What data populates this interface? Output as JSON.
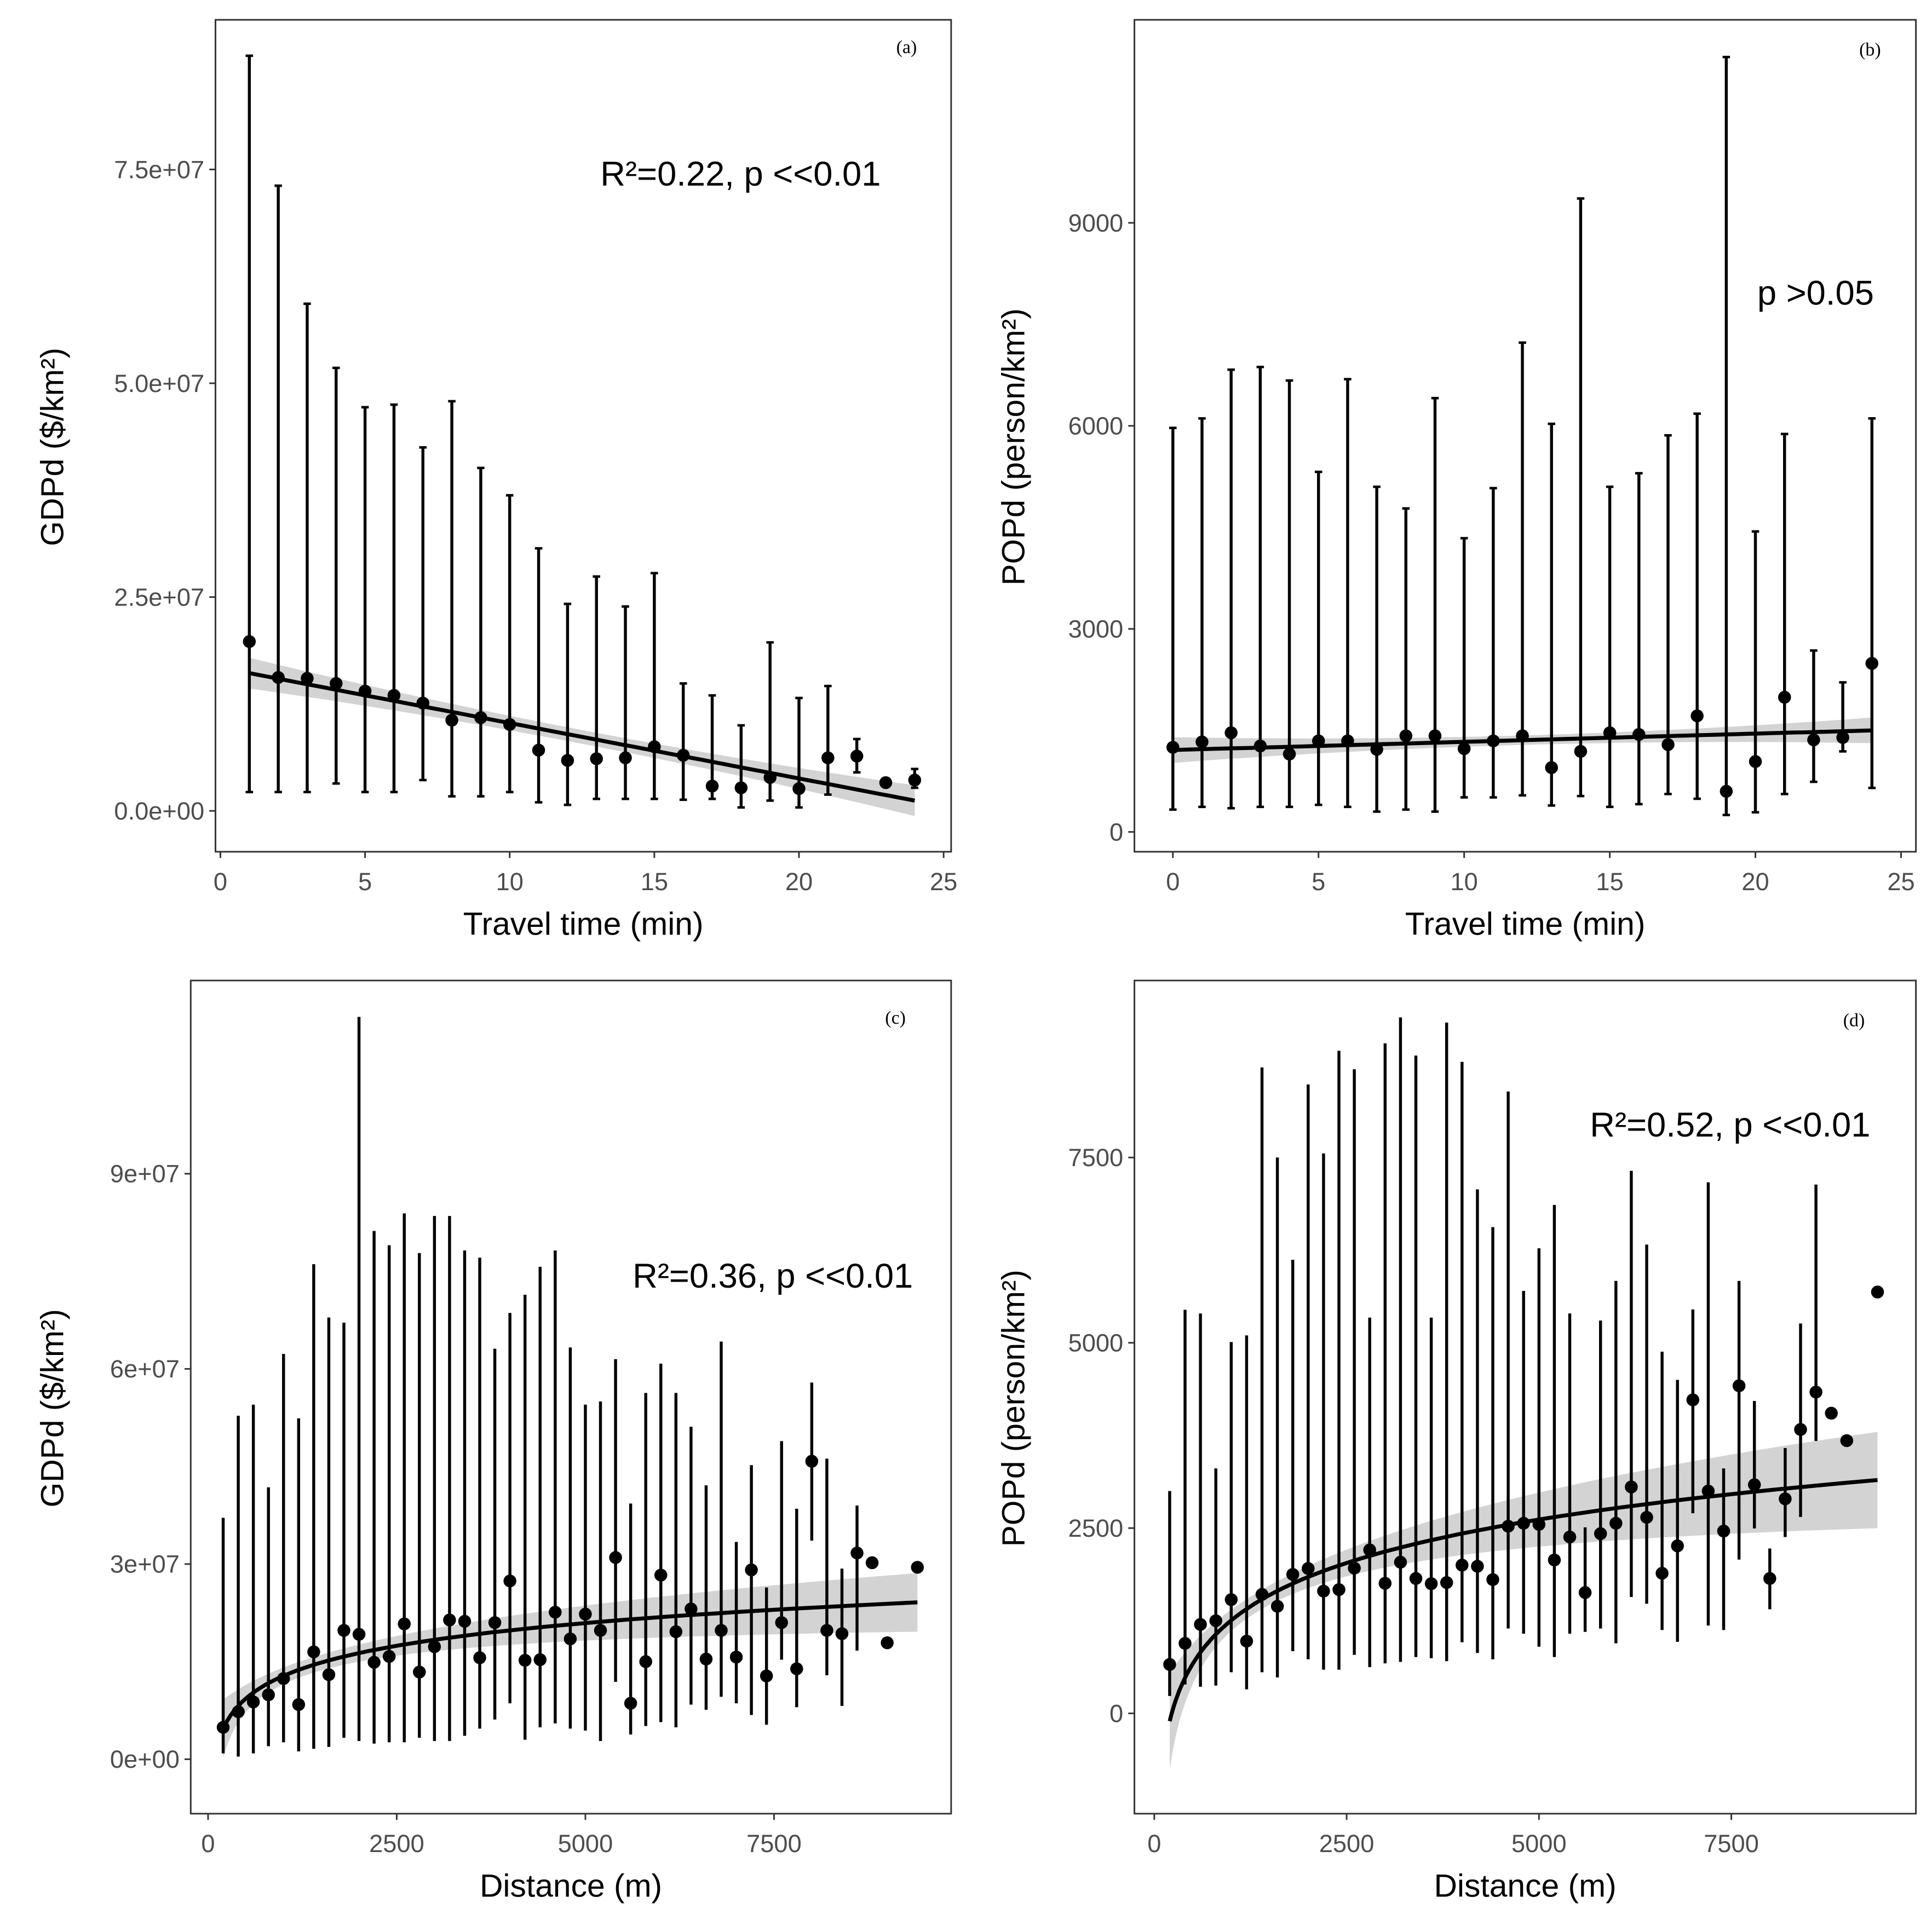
{
  "chart_data": [
    {
      "id": "a",
      "type": "scatter",
      "panel_label": "(a)",
      "annotation": "R²=0.22, p <<0.01",
      "xlabel": "Travel time (min)",
      "ylabel": "GDPd ($/km²)",
      "xlim": [
        -0.17,
        25.26
      ],
      "ylim": [
        -4780000.0,
        92500000.0
      ],
      "xticks": [
        0,
        5,
        10,
        15,
        20,
        25
      ],
      "xtick_labels": [
        "0",
        "5",
        "10",
        "15",
        "20",
        "25"
      ],
      "yticks": [
        0,
        25000000.0,
        50000000.0,
        75000000.0
      ],
      "ytick_labels": [
        "0.0e+00",
        "2.5e+07",
        "5.0e+07",
        "7.5e+07"
      ],
      "x": [
        1,
        2,
        3,
        4,
        5,
        6,
        7,
        8,
        9,
        10,
        11,
        12,
        13,
        14,
        15,
        16,
        17,
        18,
        19,
        20,
        21,
        22,
        23,
        24
      ],
      "mean": [
        19800000.0,
        15600000.0,
        15500000.0,
        14900000.0,
        14000000.0,
        13500000.0,
        12600000.0,
        10600000.0,
        10900000.0,
        10100000.0,
        7100000.0,
        5900000.0,
        6100000.0,
        6200000.0,
        7500000.0,
        6500000.0,
        2900000.0,
        2700000.0,
        3900000.0,
        2600000.0,
        6200000.0,
        6400000.0,
        3300000.0,
        3600000.0
      ],
      "upper": [
        88300000.0,
        73100000.0,
        59300000.0,
        51800000.0,
        47200000.0,
        47500000.0,
        42500000.0,
        47900000.0,
        40100000.0,
        36900000.0,
        30700000.0,
        24200000.0,
        27400000.0,
        23900000.0,
        27800000.0,
        14900000.0,
        13500000.0,
        10000000.0,
        19700000.0,
        13200000.0,
        14600000.0,
        8400000.0,
        null,
        4900000.0
      ],
      "lower": [
        2200000.0,
        2200000.0,
        2200000.0,
        3200000.0,
        2200000.0,
        2200000.0,
        3600000.0,
        1700000.0,
        1700000.0,
        2200000.0,
        1000000.0,
        700000.0,
        1400000.0,
        1400000.0,
        1400000.0,
        1300000.0,
        1400000.0,
        400000.0,
        1200000.0,
        400000.0,
        1900000.0,
        4500000.0,
        null,
        2700000.0
      ],
      "fit": {
        "type": "linear",
        "intercept": 16750000.0,
        "slope": -648000.0,
        "ci_center": 800000.0,
        "ci_edge": 1800000.0
      }
    },
    {
      "id": "b",
      "type": "scatter",
      "panel_label": "(b)",
      "annotation": "p >0.05",
      "xlabel": "Travel time (min)",
      "ylabel": "POPd (person/km²)",
      "xlim": [
        -1.32,
        25.51
      ],
      "ylim": [
        -293,
        12000
      ],
      "xticks": [
        0,
        5,
        10,
        15,
        20,
        25
      ],
      "xtick_labels": [
        "0",
        "5",
        "10",
        "15",
        "20",
        "25"
      ],
      "yticks": [
        0,
        3000,
        6000,
        9000
      ],
      "ytick_labels": [
        "0",
        "3000",
        "6000",
        "9000"
      ],
      "x": [
        0,
        1,
        2,
        3,
        4,
        5,
        6,
        7,
        8,
        9,
        10,
        11,
        12,
        13,
        14,
        15,
        16,
        17,
        18,
        19,
        20,
        21,
        22,
        23,
        24
      ],
      "mean": [
        1250,
        1330,
        1465,
        1270,
        1150,
        1345,
        1345,
        1220,
        1420,
        1420,
        1230,
        1345,
        1420,
        950,
        1190,
        1465,
        1440,
        1290,
        1715,
        600,
        1040,
        1990,
        1360,
        1395,
        2490
      ],
      "upper": [
        5970,
        6110,
        6830,
        6870,
        6670,
        5320,
        6690,
        5100,
        4780,
        6410,
        4340,
        5080,
        7230,
        6030,
        9360,
        5100,
        5300,
        5860,
        6180,
        11450,
        4440,
        5880,
        2680,
        2210,
        6110
      ],
      "lower": [
        330,
        370,
        350,
        370,
        370,
        400,
        370,
        300,
        330,
        300,
        510,
        510,
        540,
        390,
        530,
        370,
        410,
        560,
        490,
        250,
        290,
        560,
        740,
        1190,
        650
      ],
      "fit": {
        "type": "linear",
        "intercept": 1210,
        "slope": 12.1,
        "ci_center": 70,
        "ci_edge": 190
      }
    },
    {
      "id": "c",
      "type": "scatter",
      "panel_label": "(c)",
      "annotation": "R²=0.36, p <<0.01",
      "xlabel": "Distance (m)",
      "ylabel": "GDPd ($/km²)",
      "xlim": [
        -230,
        9847
      ],
      "ylim": [
        -8370000.0,
        119700000.0
      ],
      "xticks": [
        0,
        2500,
        5000,
        7500
      ],
      "xtick_labels": [
        "0",
        "2500",
        "5000",
        "7500"
      ],
      "yticks": [
        0,
        30000000.0,
        60000000.0,
        90000000.0
      ],
      "ytick_labels": [
        "0e+00",
        "3e+07",
        "6e+07",
        "9e+07"
      ],
      "x": [
        200,
        400,
        600,
        800,
        1000,
        1200,
        1400,
        1600,
        1800,
        2000,
        2200,
        2400,
        2600,
        2800,
        3000,
        3200,
        3400,
        3600,
        3800,
        4000,
        4200,
        4400,
        4600,
        4800,
        5000,
        5200,
        5400,
        5600,
        5800,
        6000,
        6200,
        6400,
        6600,
        6800,
        7000,
        7200,
        7400,
        7600,
        7800,
        8000,
        8200,
        8400,
        8600,
        8800,
        9000,
        9400
      ],
      "mean": [
        4900000.0,
        7300000.0,
        8800000.0,
        9900000.0,
        12400000.0,
        8400000.0,
        16500000.0,
        13000000.0,
        19800000.0,
        19200000.0,
        14900000.0,
        15800000.0,
        20800000.0,
        13400000.0,
        17300000.0,
        21400000.0,
        21200000.0,
        15600000.0,
        21000000.0,
        27400000.0,
        15200000.0,
        15300000.0,
        22600000.0,
        18500000.0,
        22300000.0,
        19800000.0,
        31000000.0,
        8600000.0,
        15000000.0,
        28300000.0,
        19600000.0,
        23100000.0,
        15400000.0,
        19800000.0,
        15700000.0,
        29100000.0,
        12800000.0,
        21000000.0,
        13900000.0,
        45800000.0,
        19800000.0,
        19300000.0,
        31700000.0,
        30200000.0,
        17900000.0,
        29500000.0
      ],
      "upper": [
        37100000.0,
        52800000.0,
        54500000.0,
        41800000.0,
        62300000.0,
        52400000.0,
        76100000.0,
        67900000.0,
        67100000.0,
        114100000.0,
        81200000.0,
        79000000.0,
        83900000.0,
        77800000.0,
        83500000.0,
        83500000.0,
        78200000.0,
        77100000.0,
        63100000.0,
        68600000.0,
        71400000.0,
        75700000.0,
        78200000.0,
        63300000.0,
        54500000.0,
        55000000.0,
        61500000.0,
        39300000.0,
        56300000.0,
        60800000.0,
        56300000.0,
        51100000.0,
        42100000.0,
        64200000.0,
        33400000.0,
        45200000.0,
        26400000.0,
        48900000.0,
        38500000.0,
        57900000.0,
        46200000.0,
        29300000.0,
        39000000.0,
        null,
        null,
        null
      ],
      "lower": [
        900000.0,
        400000.0,
        900000.0,
        2000000.0,
        2600000.0,
        1200000.0,
        1600000.0,
        1900000.0,
        3300000.0,
        2800000.0,
        2400000.0,
        2600000.0,
        2600000.0,
        3300000.0,
        2800000.0,
        2800000.0,
        3600000.0,
        4700000.0,
        6100000.0,
        8600000.0,
        3000000.0,
        4900000.0,
        5500000.0,
        4700000.0,
        4400000.0,
        2800000.0,
        11900000.0,
        3800000.0,
        5100000.0,
        5700000.0,
        4900000.0,
        8400000.0,
        7600000.0,
        9600000.0,
        8600000.0,
        6800000.0,
        5300000.0,
        15300000.0,
        8000000.0,
        33600000.0,
        12900000.0,
        8200000.0,
        16700000.0,
        null,
        null,
        null
      ],
      "fit": {
        "type": "log",
        "intercept": -22000000.0,
        "slope": 5040000.0,
        "ci_center": 1200000.0,
        "ci_edge": 4500000.0
      }
    },
    {
      "id": "d",
      "type": "scatter",
      "panel_label": "(d)",
      "annotation": "R²=0.52, p <<0.01",
      "xlabel": "Distance (m)",
      "ylabel": "POPd (person/km²)",
      "xlim": [
        -258,
        9899
      ],
      "ylim": [
        -1353,
        9888
      ],
      "xticks": [
        0,
        2500,
        5000,
        7500
      ],
      "xtick_labels": [
        "0",
        "2500",
        "5000",
        "7500"
      ],
      "yticks": [
        0,
        2500,
        5000,
        7500
      ],
      "ytick_labels": [
        "0",
        "2500",
        "5000",
        "7500"
      ],
      "x": [
        200,
        400,
        600,
        800,
        1000,
        1200,
        1400,
        1600,
        1800,
        2000,
        2200,
        2400,
        2600,
        2800,
        3000,
        3200,
        3400,
        3600,
        3800,
        4000,
        4200,
        4400,
        4600,
        4800,
        5000,
        5200,
        5400,
        5600,
        5800,
        6000,
        6200,
        6400,
        6600,
        6800,
        7000,
        7200,
        7400,
        7600,
        7800,
        8000,
        8200,
        8400,
        8600,
        8800,
        9000,
        9400
      ],
      "mean": [
        660,
        945,
        1200,
        1250,
        1535,
        975,
        1605,
        1445,
        1875,
        1955,
        1650,
        1670,
        1960,
        2205,
        1755,
        2040,
        1820,
        1750,
        1765,
        2000,
        1985,
        1805,
        2525,
        2565,
        2550,
        2070,
        2380,
        1630,
        2425,
        2565,
        3055,
        2645,
        1890,
        2260,
        4230,
        3000,
        2460,
        4420,
        3085,
        1820,
        2895,
        3830,
        4335,
        4050,
        3680,
        5685
      ],
      "upper": [
        3000,
        5445,
        5395,
        3305,
        5010,
        5100,
        8715,
        7500,
        6120,
        8485,
        7555,
        8940,
        8690,
        5340,
        9040,
        9390,
        8875,
        5340,
        9320,
        8790,
        7070,
        6560,
        8390,
        5700,
        6275,
        6860,
        5395,
        2510,
        5300,
        5835,
        7320,
        6325,
        4880,
        4500,
        5450,
        7165,
        3305,
        5835,
        4215,
        2225,
        3580,
        5260,
        7135,
        null,
        null,
        null
      ],
      "lower": [
        235,
        390,
        360,
        375,
        555,
        325,
        555,
        485,
        840,
        730,
        590,
        590,
        790,
        625,
        675,
        695,
        760,
        745,
        705,
        960,
        815,
        730,
        1145,
        1075,
        900,
        760,
        1075,
        1100,
        1145,
        945,
        1570,
        1480,
        1125,
        965,
        2700,
        1185,
        1125,
        2075,
        2495,
        1405,
        2380,
        2650,
        3675,
        null,
        null,
        null
      ],
      "fit": {
        "type": "log",
        "intercept": -4582,
        "slope": 845,
        "ci_center": 130,
        "ci_edge": 650
      }
    }
  ]
}
